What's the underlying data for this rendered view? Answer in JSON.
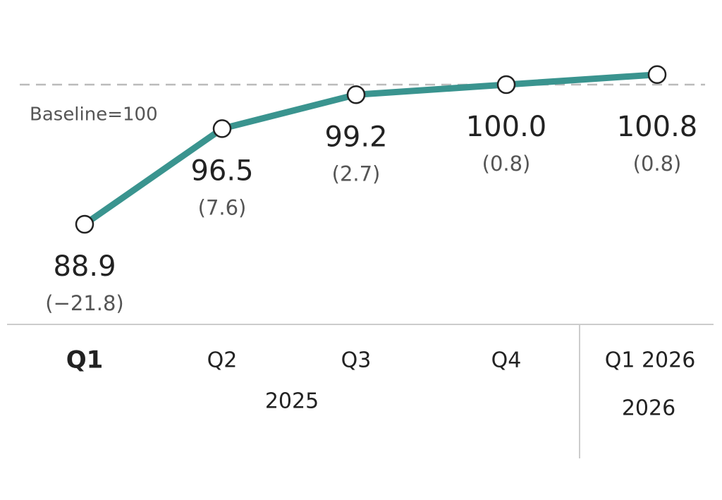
{
  "chart_data": {
    "type": "line",
    "categories": [
      "Q1",
      "Q2",
      "Q3",
      "Q4",
      "Q1 2026"
    ],
    "groups": [
      {
        "label": "2025",
        "span": 4
      },
      {
        "label": "2026",
        "span": 1
      }
    ],
    "series": [
      {
        "color": "#3a948f",
        "values": [
          88.9,
          96.5,
          99.2,
          100.0,
          100.8
        ],
        "value_labels": [
          "88.9",
          "96.5",
          "99.2",
          "100.0",
          "100.8"
        ],
        "change_labels": [
          "(−21.8)",
          "(7.6)",
          "(2.7)",
          "(0.8)",
          "(0.8)"
        ]
      }
    ],
    "baseline": {
      "value": 100,
      "label": "Baseline=100"
    }
  }
}
